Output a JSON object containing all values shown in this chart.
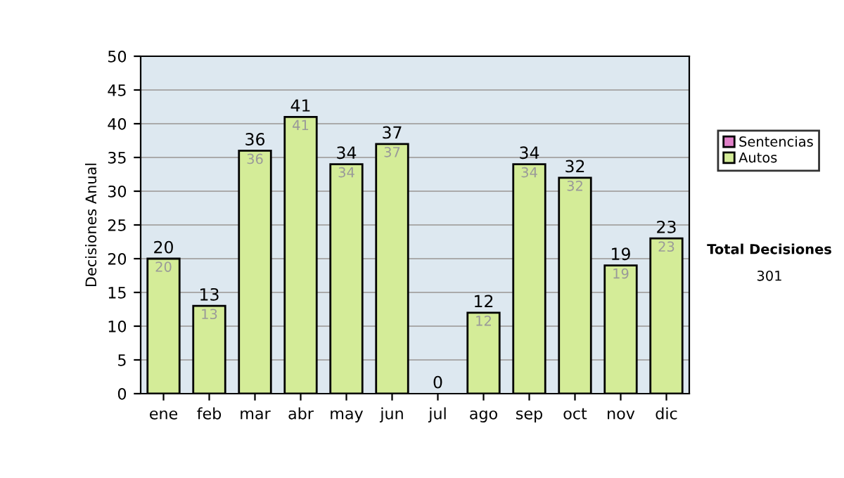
{
  "chart_data": {
    "type": "bar",
    "stacked": true,
    "ylabel": "Decisiones Anual",
    "categories": [
      "ene",
      "feb",
      "mar",
      "abr",
      "may",
      "jun",
      "jul",
      "ago",
      "sep",
      "oct",
      "nov",
      "dic"
    ],
    "series": [
      {
        "name": "Sentencias",
        "color": "#e080c8",
        "values": [
          0,
          0,
          0,
          0,
          0,
          0,
          0,
          0,
          0,
          0,
          0,
          0
        ]
      },
      {
        "name": "Autos",
        "color": "#d4ec98",
        "values": [
          20,
          13,
          36,
          41,
          34,
          37,
          0,
          12,
          34,
          32,
          19,
          23
        ],
        "value_labels": [
          "20",
          "13",
          "36",
          "41",
          "34",
          "37",
          null,
          "12",
          "34",
          "32",
          "19",
          "23"
        ]
      }
    ],
    "totals": [
      "20",
      "13",
      "36",
      "41",
      "34",
      "37",
      "0",
      "12",
      "34",
      "32",
      "19",
      "23"
    ],
    "ylim": [
      0,
      50
    ],
    "yticks": [
      0,
      5,
      10,
      15,
      20,
      25,
      30,
      35,
      40,
      45,
      50
    ],
    "grid": "y",
    "legend": "right",
    "annotations": [
      "Total Decisiones",
      "301"
    ]
  }
}
